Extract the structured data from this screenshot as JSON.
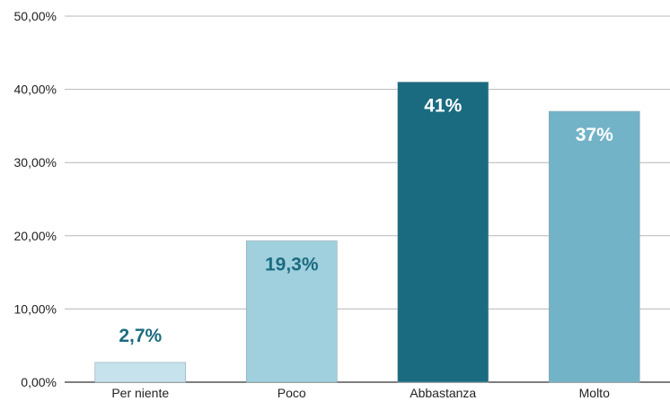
{
  "chart_data": {
    "type": "bar",
    "categories": [
      "Per niente",
      "Poco",
      "Abbastanza",
      "Molto"
    ],
    "values": [
      2.7,
      19.3,
      41,
      37
    ],
    "data_labels": [
      "2,7%",
      "19,3%",
      "41%",
      "37%"
    ],
    "bar_colors": [
      "#c6e2ec",
      "#a0d0de",
      "#1b6b80",
      "#72b3c8"
    ],
    "label_colors": [
      "#1b6b80",
      "#1b6b80",
      "#ffffff",
      "#ffffff"
    ],
    "ylim": [
      0,
      50
    ],
    "yticks": [
      0,
      10,
      20,
      30,
      40,
      50
    ],
    "ytick_labels": [
      "0,00%",
      "10,00%",
      "20,00%",
      "30,00%",
      "40,00%",
      "50,00%"
    ],
    "grid": true,
    "title": "",
    "xlabel": "",
    "ylabel": ""
  }
}
